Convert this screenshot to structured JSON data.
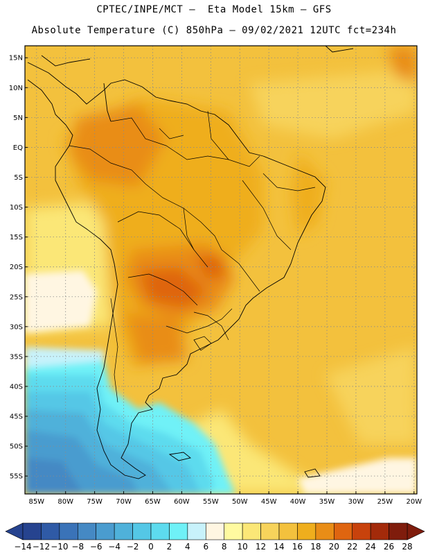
{
  "header": {
    "line1": "CPTEC/INPE/MCT –  Eta Model 15km – GFS",
    "line2": "Absolute Temperature (C) 850hPa – 09/02/2021 12UTC fct=234h"
  },
  "map": {
    "lat_labels": [
      "15N",
      "10N",
      "5N",
      "EQ",
      "5S",
      "10S",
      "15S",
      "20S",
      "25S",
      "30S",
      "35S",
      "40S",
      "45S",
      "50S",
      "55S"
    ],
    "lat_values": [
      15,
      10,
      5,
      0,
      -5,
      -10,
      -15,
      -20,
      -25,
      -30,
      -35,
      -40,
      -45,
      -50,
      -55
    ],
    "lon_labels": [
      "85W",
      "80W",
      "75W",
      "70W",
      "65W",
      "60W",
      "55W",
      "50W",
      "45W",
      "40W",
      "35W",
      "30W",
      "25W",
      "20W"
    ],
    "lon_values": [
      -85,
      -80,
      -75,
      -70,
      -65,
      -60,
      -55,
      -50,
      -45,
      -40,
      -35,
      -30,
      -25,
      -20
    ],
    "extent": {
      "lon_min": -87,
      "lon_max": -19.5,
      "lat_min": -58,
      "lat_max": 17
    }
  },
  "colorbar": {
    "labels": [
      "-14",
      "-12",
      "-10",
      "-8",
      "-6",
      "-4",
      "-2",
      "0",
      "2",
      "4",
      "6",
      "8",
      "10",
      "12",
      "14",
      "16",
      "18",
      "20",
      "22",
      "24",
      "26",
      "28"
    ],
    "colors": [
      "#26438f",
      "#2f5aa6",
      "#3a73b8",
      "#4589c4",
      "#4a9ccf",
      "#4fb1da",
      "#54c7e6",
      "#5ddbee",
      "#6ff1f7",
      "#c8f2fb",
      "#fff6e2",
      "#fffaa0",
      "#fbe777",
      "#f7d35b",
      "#f3c13d",
      "#efae1d",
      "#e98d16",
      "#df6510",
      "#c8420c",
      "#a32a0a",
      "#7f1c0c"
    ],
    "low_color": "#26438f",
    "high_color": "#7f1c0c"
  }
}
